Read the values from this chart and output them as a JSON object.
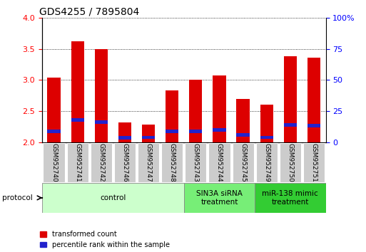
{
  "title": "GDS4255 / 7895804",
  "samples": [
    "GSM952740",
    "GSM952741",
    "GSM952742",
    "GSM952746",
    "GSM952747",
    "GSM952748",
    "GSM952743",
    "GSM952744",
    "GSM952745",
    "GSM952749",
    "GSM952750",
    "GSM952751"
  ],
  "transformed_count": [
    3.04,
    3.62,
    3.5,
    2.32,
    2.28,
    2.83,
    3.01,
    3.07,
    2.7,
    2.6,
    3.38,
    3.36
  ],
  "percentile_rank": [
    2.18,
    2.36,
    2.33,
    2.07,
    2.08,
    2.18,
    2.18,
    2.2,
    2.12,
    2.08,
    2.28,
    2.27
  ],
  "bar_color": "#dd0000",
  "pct_color": "#2222cc",
  "ymin": 2.0,
  "ymax": 4.0,
  "y_ticks": [
    2.0,
    2.5,
    3.0,
    3.5,
    4.0
  ],
  "y_right_ticks": [
    0,
    25,
    50,
    75,
    100
  ],
  "groups": [
    {
      "label": "control",
      "start": 0,
      "end": 5,
      "color": "#ccffcc"
    },
    {
      "label": "SIN3A siRNA\ntreatment",
      "start": 6,
      "end": 8,
      "color": "#77ee77"
    },
    {
      "label": "miR-138 mimic\ntreatment",
      "start": 9,
      "end": 11,
      "color": "#33cc33"
    }
  ],
  "protocol_label": "protocol",
  "legend_entries": [
    {
      "label": "transformed count",
      "color": "#dd0000"
    },
    {
      "label": "percentile rank within the sample",
      "color": "#2222cc"
    }
  ],
  "bar_width": 0.55,
  "title_fontsize": 10,
  "tick_fontsize": 8,
  "label_fontsize": 8
}
